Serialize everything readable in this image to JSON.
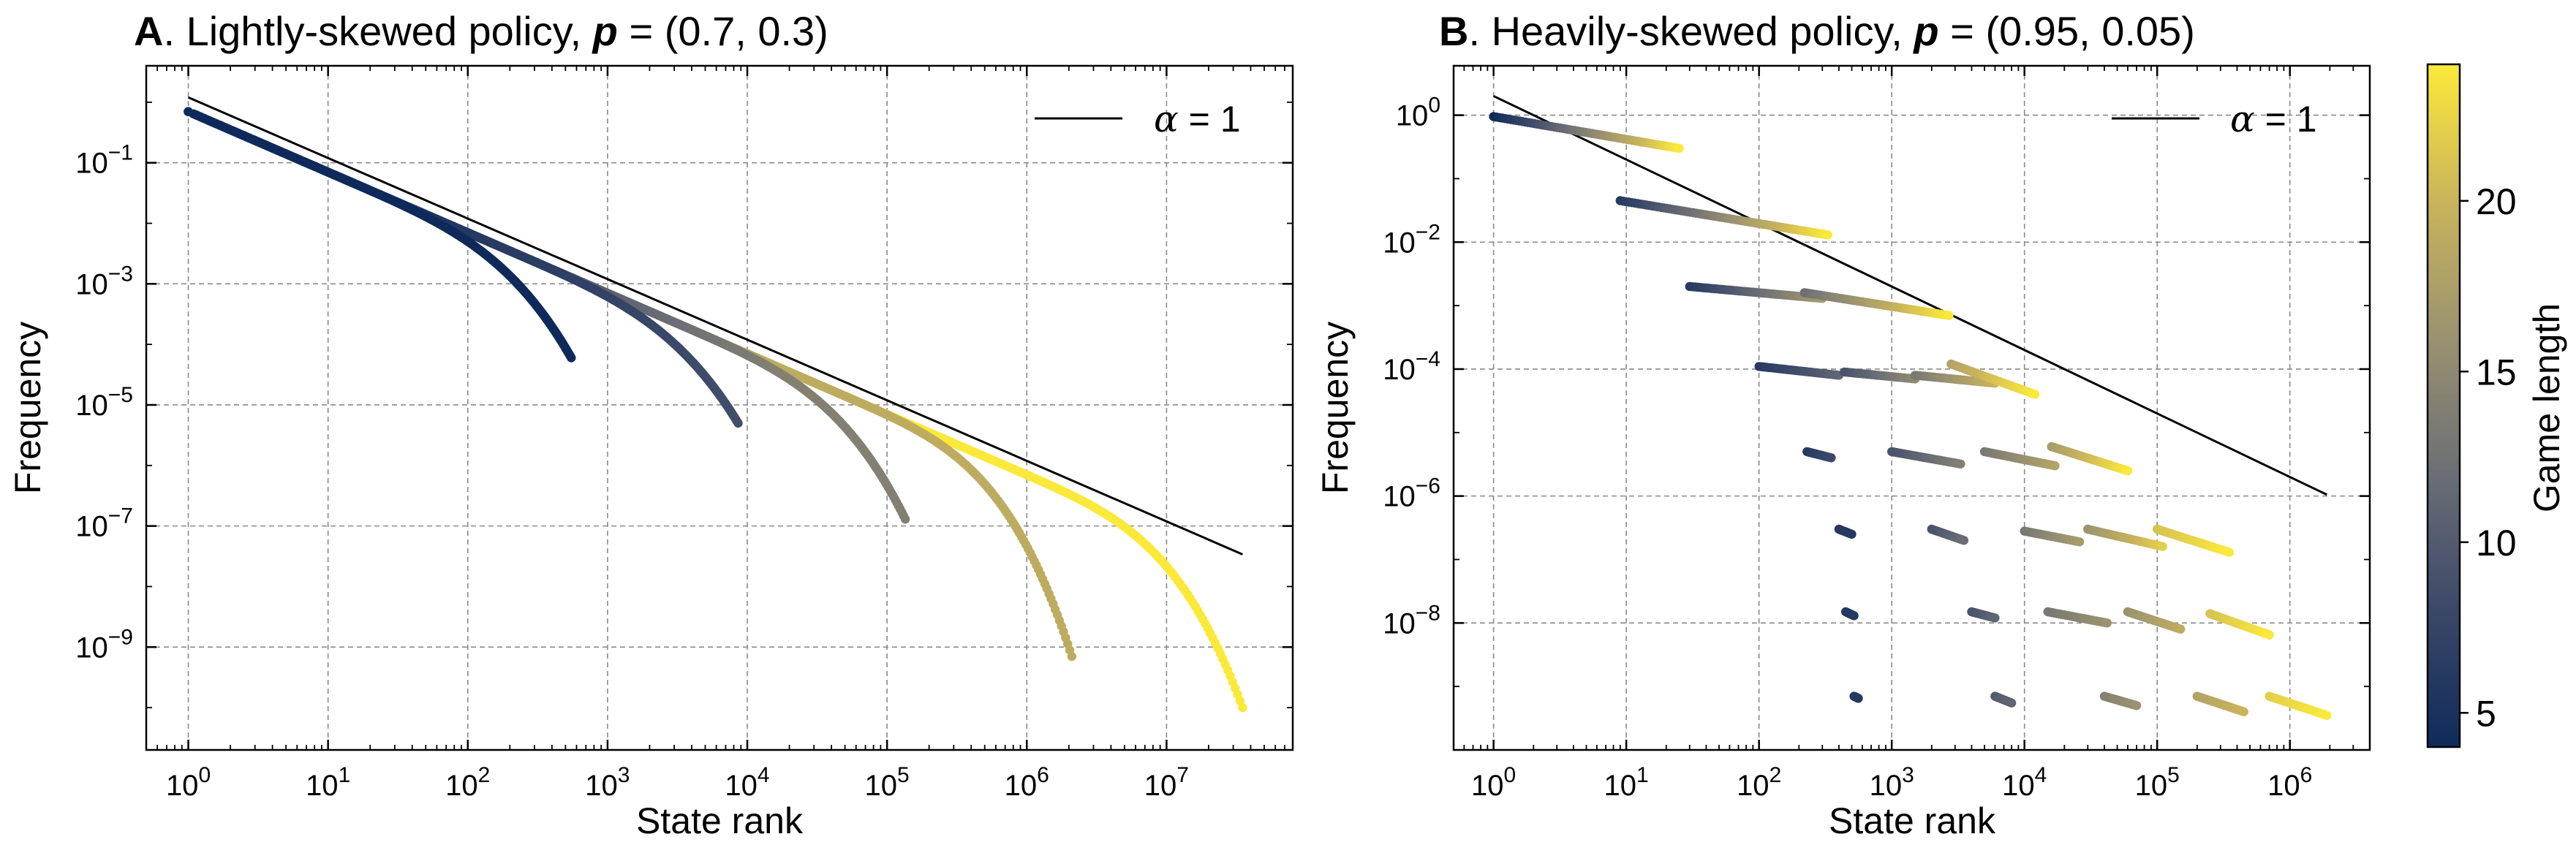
{
  "chart_data": [
    {
      "type": "scatter",
      "panel_letter": "A",
      "title": "Lightly-skewed policy, p = (0.7, 0.3)",
      "title_parts": {
        "letter": "A",
        "text": ". Lightly-skewed policy, ",
        "bold_symbol": "p",
        "value": " = (0.7, 0.3)"
      },
      "xlabel": "State rank",
      "ylabel": "Frequency",
      "xscale": "log",
      "yscale": "log",
      "xlim": [
        0.5,
        80000000.0
      ],
      "ylim": [
        2e-11,
        4
      ],
      "xticks": [
        1,
        10,
        100,
        1000,
        10000,
        100000,
        1000000,
        10000000
      ],
      "xtick_labels": [
        {
          "b": "10",
          "e": "0"
        },
        {
          "b": "10",
          "e": "1"
        },
        {
          "b": "10",
          "e": "2"
        },
        {
          "b": "10",
          "e": "3"
        },
        {
          "b": "10",
          "e": "4"
        },
        {
          "b": "10",
          "e": "5"
        },
        {
          "b": "10",
          "e": "6"
        },
        {
          "b": "10",
          "e": "7"
        }
      ],
      "yticks": [
        0.1,
        0.001,
        1e-05,
        1e-07,
        1e-09
      ],
      "ytick_labels": [
        {
          "b": "10",
          "e": "−1"
        },
        {
          "b": "10",
          "e": "−3"
        },
        {
          "b": "10",
          "e": "−5"
        },
        {
          "b": "10",
          "e": "−7"
        },
        {
          "b": "10",
          "e": "−9"
        }
      ],
      "grid": true,
      "legend": {
        "label_symbol": "α",
        "label_value": " = 1",
        "placement": "top-right"
      },
      "reference_line": {
        "alpha": 1,
        "x": [
          1,
          35000000
        ],
        "y": [
          1.2,
          3.4e-08
        ]
      },
      "series": [
        {
          "game_length": 4,
          "x_max": 550,
          "y_end": 6e-05
        },
        {
          "game_length": 9,
          "x_max": 8600,
          "y_end": 5e-06
        },
        {
          "game_length": 14,
          "x_max": 135000,
          "y_end": 1.3e-07
        },
        {
          "game_length": 19,
          "x_max": 2100000,
          "y_end": 7e-10
        },
        {
          "game_length": 24,
          "x_max": 35000000,
          "y_end": 1e-10
        }
      ]
    },
    {
      "type": "scatter",
      "panel_letter": "B",
      "title": "Heavily-skewed policy, p = (0.95, 0.05)",
      "title_parts": {
        "letter": "B",
        "text": ". Heavily-skewed policy, ",
        "bold_symbol": "p",
        "value": " = (0.95, 0.05)"
      },
      "xlabel": "State rank",
      "ylabel": "Frequency",
      "xscale": "log",
      "yscale": "log",
      "xlim": [
        0.5,
        4000000.0
      ],
      "ylim": [
        1e-10,
        6
      ],
      "xticks": [
        1,
        10,
        100,
        1000,
        10000,
        100000,
        1000000
      ],
      "xtick_labels": [
        {
          "b": "10",
          "e": "0"
        },
        {
          "b": "10",
          "e": "1"
        },
        {
          "b": "10",
          "e": "2"
        },
        {
          "b": "10",
          "e": "3"
        },
        {
          "b": "10",
          "e": "4"
        },
        {
          "b": "10",
          "e": "5"
        },
        {
          "b": "10",
          "e": "6"
        }
      ],
      "yticks": [
        1,
        0.01,
        0.0001,
        1e-06,
        1e-08
      ],
      "ytick_labels": [
        {
          "b": "10",
          "e": "0"
        },
        {
          "b": "10",
          "e": "−2"
        },
        {
          "b": "10",
          "e": "−4"
        },
        {
          "b": "10",
          "e": "−6"
        },
        {
          "b": "10",
          "e": "−8"
        }
      ],
      "grid": true,
      "legend": {
        "label_symbol": "α",
        "label_value": " = 1",
        "placement": "top-right"
      },
      "reference_line": {
        "alpha": 1,
        "x": [
          1,
          1900000
        ],
        "y": [
          2.0,
          1.05e-06
        ]
      },
      "clusters": [
        {
          "level": 0,
          "x": [
            1,
            25
          ],
          "y": [
            0.95,
            0.3
          ],
          "game_length": [
            4,
            24
          ]
        },
        {
          "level": 1,
          "x": [
            9,
            330
          ],
          "y": [
            0.045,
            0.013
          ],
          "game_length": [
            6,
            24
          ]
        },
        {
          "level": 2,
          "x": [
            30,
            300
          ],
          "y": [
            0.002,
            0.0013
          ],
          "game_length": [
            6,
            17
          ]
        },
        {
          "level": 2,
          "x": [
            220,
            2700
          ],
          "y": [
            0.0016,
            0.0007
          ],
          "game_length": [
            12,
            24
          ]
        },
        {
          "level": 3,
          "x": [
            100,
            400
          ],
          "y": [
            0.00011,
            8e-05
          ],
          "game_length": [
            6,
            11
          ]
        },
        {
          "level": 3,
          "x": [
            440,
            1500
          ],
          "y": [
            9e-05,
            7e-05
          ],
          "game_length": [
            9,
            15
          ]
        },
        {
          "level": 3,
          "x": [
            1500,
            6000
          ],
          "y": [
            8e-05,
            6e-05
          ],
          "game_length": [
            13,
            20
          ]
        },
        {
          "level": 3,
          "x": [
            2800,
            12000
          ],
          "y": [
            0.00012,
            4e-05
          ],
          "game_length": [
            18,
            24
          ]
        },
        {
          "level": 4,
          "x": [
            230,
            350
          ],
          "y": [
            5e-06,
            4e-06
          ],
          "game_length": [
            6,
            8
          ]
        },
        {
          "level": 4,
          "x": [
            1000,
            3300
          ],
          "y": [
            5e-06,
            3.2e-06
          ],
          "game_length": [
            9,
            14
          ]
        },
        {
          "level": 4,
          "x": [
            5000,
            17000
          ],
          "y": [
            5e-06,
            3e-06
          ],
          "game_length": [
            13,
            18
          ]
        },
        {
          "level": 4,
          "x": [
            16000,
            60000
          ],
          "y": [
            6e-06,
            2.5e-06
          ],
          "game_length": [
            17,
            24
          ]
        },
        {
          "level": 5,
          "x": [
            400,
            500
          ],
          "y": [
            3e-07,
            2.5e-07
          ],
          "game_length": [
            6,
            6
          ]
        },
        {
          "level": 5,
          "x": [
            2000,
            3500
          ],
          "y": [
            3e-07,
            2e-07
          ],
          "game_length": [
            9,
            12
          ]
        },
        {
          "level": 5,
          "x": [
            10000,
            26000
          ],
          "y": [
            2.8e-07,
            1.9e-07
          ],
          "game_length": [
            13,
            17
          ]
        },
        {
          "level": 5,
          "x": [
            30000,
            110000
          ],
          "y": [
            3e-07,
            1.6e-07
          ],
          "game_length": [
            16,
            22
          ]
        },
        {
          "level": 5,
          "x": [
            100000,
            350000
          ],
          "y": [
            3e-07,
            1.3e-07
          ],
          "game_length": [
            21,
            24
          ]
        },
        {
          "level": 6,
          "x": [
            450,
            520
          ],
          "y": [
            1.5e-08,
            1.3e-08
          ],
          "game_length": [
            6,
            6
          ]
        },
        {
          "level": 6,
          "x": [
            4000,
            6000
          ],
          "y": [
            1.5e-08,
            1.2e-08
          ],
          "game_length": [
            9,
            11
          ]
        },
        {
          "level": 6,
          "x": [
            15000,
            42000
          ],
          "y": [
            1.5e-08,
            1e-08
          ],
          "game_length": [
            13,
            16
          ]
        },
        {
          "level": 6,
          "x": [
            60000,
            150000
          ],
          "y": [
            1.5e-08,
            8e-09
          ],
          "game_length": [
            16,
            19
          ]
        },
        {
          "level": 6,
          "x": [
            250000,
            700000
          ],
          "y": [
            1.4e-08,
            6.5e-09
          ],
          "game_length": [
            21,
            24
          ]
        },
        {
          "level": 7,
          "x": [
            520,
            560
          ],
          "y": [
            7e-10,
            6.5e-10
          ],
          "game_length": [
            6,
            6
          ]
        },
        {
          "level": 7,
          "x": [
            6000,
            8000
          ],
          "y": [
            7e-10,
            5.5e-10
          ],
          "game_length": [
            10,
            11
          ]
        },
        {
          "level": 7,
          "x": [
            40000,
            70000
          ],
          "y": [
            7e-10,
            5e-10
          ],
          "game_length": [
            14,
            16
          ]
        },
        {
          "level": 7,
          "x": [
            200000,
            450000
          ],
          "y": [
            7e-10,
            4e-10
          ],
          "game_length": [
            18,
            20
          ]
        },
        {
          "level": 7,
          "x": [
            700000,
            1900000
          ],
          "y": [
            7e-10,
            3.5e-10
          ],
          "game_length": [
            22,
            24
          ]
        }
      ]
    }
  ],
  "colorbar": {
    "label": "Game length",
    "range": [
      4,
      24
    ],
    "ticks": [
      5,
      10,
      15,
      20
    ],
    "tick_labels": [
      "5",
      "10",
      "15",
      "20"
    ],
    "colormap": [
      "#0f2a5a",
      "#3b4868",
      "#6b6e75",
      "#9a9270",
      "#c9b45b",
      "#fbe93a"
    ]
  }
}
